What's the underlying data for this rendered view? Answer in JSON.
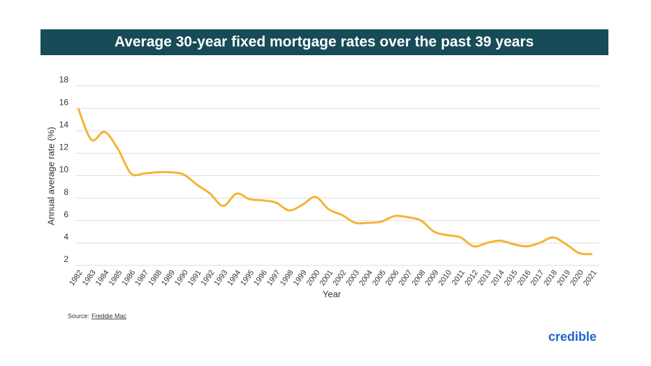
{
  "chart_data": {
    "type": "line",
    "title": "Average 30-year fixed mortgage rates over the past 39 years",
    "y_label": "Annual average rate (%)",
    "x_label": "Year",
    "categories": [
      "1982",
      "1983",
      "1984",
      "1985",
      "1986",
      "1987",
      "1988",
      "1989",
      "1990",
      "1991",
      "1992",
      "1993",
      "1994",
      "1995",
      "1996",
      "1997",
      "1998",
      "1999",
      "2000",
      "2001",
      "2002",
      "2003",
      "2004",
      "2005",
      "2006",
      "2007",
      "2008",
      "2009",
      "2010",
      "2011",
      "2012",
      "2013",
      "2014",
      "2015",
      "2016",
      "2017",
      "2018",
      "2019",
      "2020",
      "2021"
    ],
    "values": [
      16.0,
      13.2,
      13.9,
      12.4,
      10.2,
      10.2,
      10.3,
      10.3,
      10.1,
      9.2,
      8.4,
      7.3,
      8.4,
      7.9,
      7.8,
      7.6,
      6.9,
      7.4,
      8.1,
      7.0,
      6.5,
      5.8,
      5.8,
      5.9,
      6.4,
      6.3,
      6.0,
      5.0,
      4.7,
      4.5,
      3.7,
      4.0,
      4.2,
      3.9,
      3.7,
      4.0,
      4.5,
      3.9,
      3.1,
      3.0
    ],
    "color": "#f5b335",
    "ylim": [
      2,
      18
    ],
    "yticks": [
      2,
      4,
      6,
      8,
      10,
      12,
      14,
      16,
      18
    ],
    "grid": true,
    "source_label": "Source:",
    "source": "Freddie Mac",
    "logo": "credible"
  }
}
